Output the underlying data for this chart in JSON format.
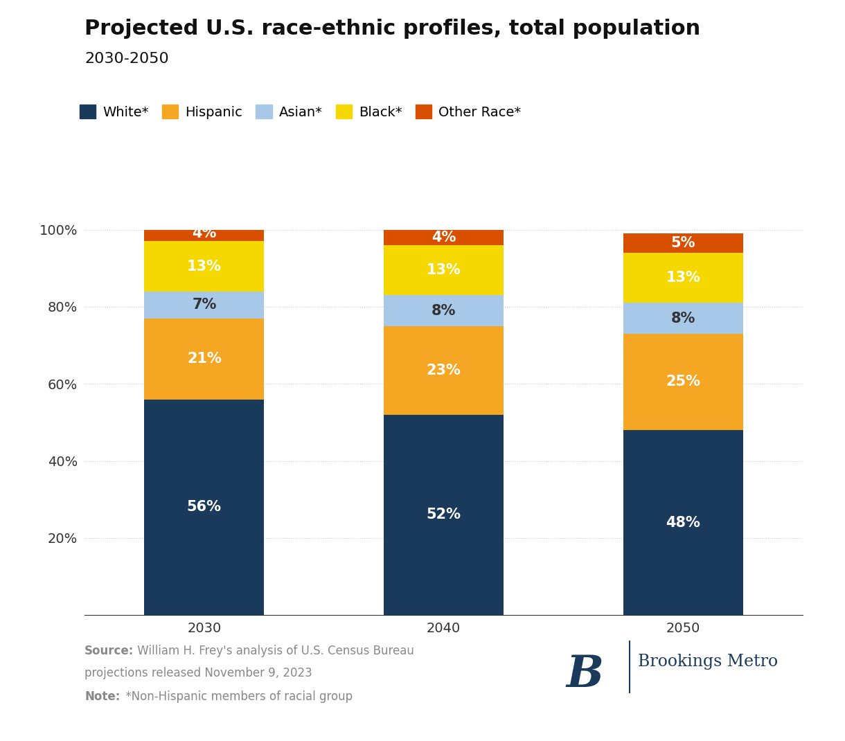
{
  "title": "Projected U.S. race-ethnic profiles, total population",
  "subtitle": "2030-2050",
  "years": [
    "2030",
    "2040",
    "2050"
  ],
  "categories": [
    "White*",
    "Hispanic",
    "Asian*",
    "Black*",
    "Other Race*"
  ],
  "colors": [
    "#1a3a5c",
    "#f5a623",
    "#a8c8e8",
    "#f5d800",
    "#d94f00"
  ],
  "data": {
    "White*": [
      56,
      52,
      48
    ],
    "Hispanic": [
      21,
      23,
      25
    ],
    "Asian*": [
      7,
      8,
      8
    ],
    "Black*": [
      13,
      13,
      13
    ],
    "Other Race*": [
      4,
      4,
      5
    ]
  },
  "label_colors": {
    "White*": "#ffffff",
    "Hispanic": "#ffffff",
    "Asian*": "#333333",
    "Black*": "#ffffff",
    "Other Race*": "#ffffff"
  },
  "source_bold": "Source:",
  "source_line1": " William H. Frey's analysis of U.S. Census Bureau",
  "source_line2": "projections released November 9, 2023",
  "note_bold": "Note:",
  "note_text": " *Non-Hispanic members of racial group",
  "brookings_text": "Brookings Metro",
  "ylim": [
    0,
    100
  ],
  "yticks": [
    20,
    40,
    60,
    80,
    100
  ],
  "bar_width": 0.5,
  "background_color": "#ffffff",
  "axis_color": "#333333",
  "grid_color": "#cccccc",
  "title_fontsize": 22,
  "subtitle_fontsize": 16,
  "legend_fontsize": 14,
  "tick_fontsize": 14,
  "label_fontsize": 15,
  "source_fontsize": 12,
  "brookings_color": "#1a3a5c"
}
